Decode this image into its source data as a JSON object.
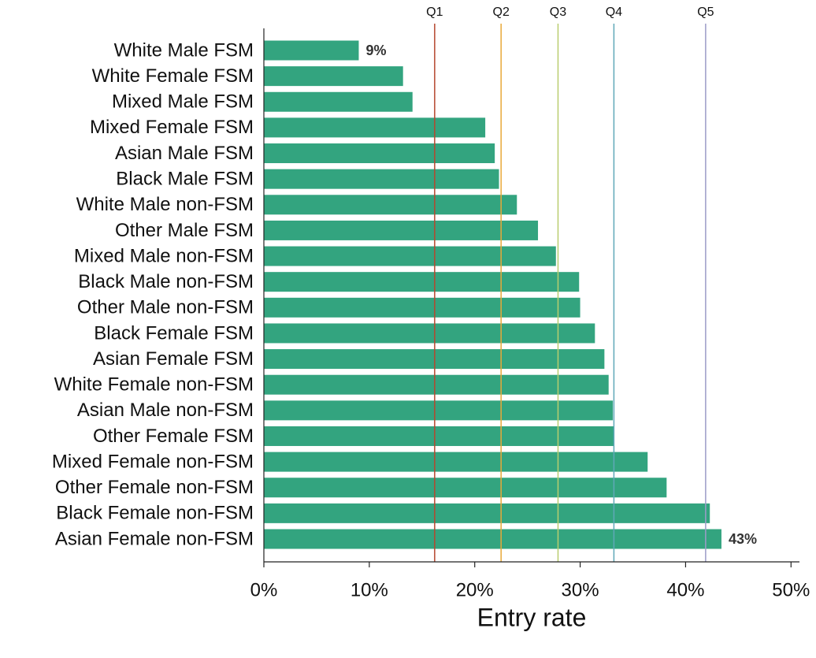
{
  "chart_data": {
    "type": "bar",
    "orientation": "horizontal",
    "xlabel": "Entry rate",
    "categories": [
      "White Male FSM",
      "White Female FSM",
      "Mixed Male FSM",
      "Mixed Female FSM",
      "Asian Male FSM",
      "Black Male FSM",
      "White Male non-FSM",
      "Other Male FSM",
      "Mixed Male non-FSM",
      "Black Male non-FSM",
      "Other Male non-FSM",
      "Black Female FSM",
      "Asian Female FSM",
      "White Female non-FSM",
      "Asian Male non-FSM",
      "Other Female FSM",
      "Mixed Female non-FSM",
      "Other Female non-FSM",
      "Black Female non-FSM",
      "Asian Female non-FSM"
    ],
    "values": [
      9,
      13.2,
      14.1,
      21.0,
      21.9,
      22.3,
      24.0,
      26.0,
      27.7,
      29.9,
      30.0,
      31.4,
      32.3,
      32.7,
      33.1,
      33.2,
      36.4,
      38.2,
      42.3,
      43.4
    ],
    "value_labels": [
      "9%",
      null,
      null,
      null,
      null,
      null,
      null,
      null,
      null,
      null,
      null,
      null,
      null,
      null,
      null,
      null,
      null,
      null,
      null,
      "43%"
    ],
    "color": "#33a47f",
    "xlim": [
      0,
      50.8
    ],
    "xticks": [
      {
        "value": 0,
        "label": "0%"
      },
      {
        "value": 10,
        "label": "10%"
      },
      {
        "value": 20,
        "label": "20%"
      },
      {
        "value": 30,
        "label": "30%"
      },
      {
        "value": 40,
        "label": "40%"
      },
      {
        "value": 50,
        "label": "50%"
      }
    ],
    "reference_lines": [
      {
        "label": "Q1",
        "value": 16.2,
        "color": "#b5462e"
      },
      {
        "label": "Q2",
        "value": 22.5,
        "color": "#e8a838"
      },
      {
        "label": "Q3",
        "value": 27.9,
        "color": "#b9cd6e"
      },
      {
        "label": "Q4",
        "value": 33.2,
        "color": "#5fa8b8"
      },
      {
        "label": "Q5",
        "value": 41.9,
        "color": "#9c9cc8"
      }
    ]
  }
}
